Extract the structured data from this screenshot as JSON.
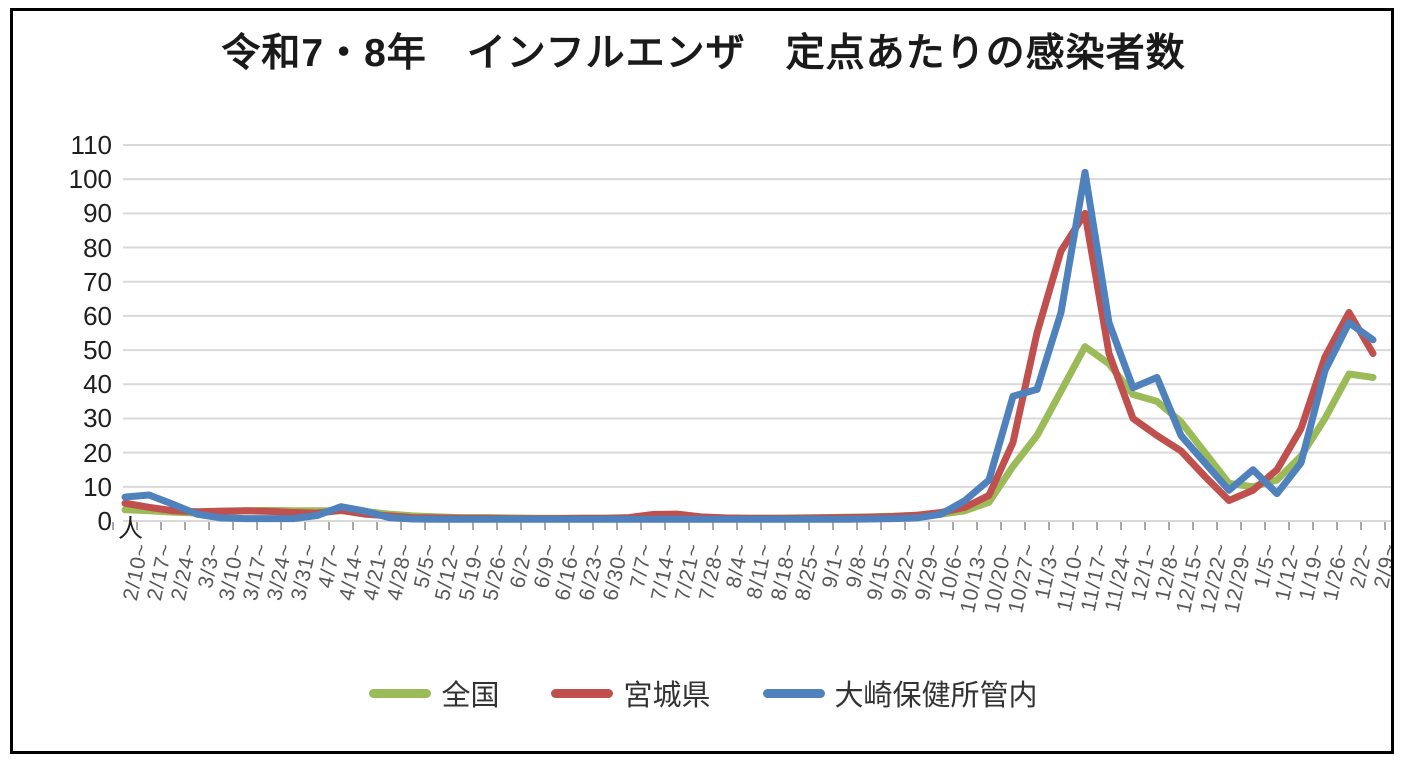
{
  "chart_data": {
    "type": "line",
    "title": "令和7・8年　インフルエンザ　定点あたりの感染者数",
    "y_axis": {
      "labels": [
        "110",
        "100",
        "90",
        "80",
        "70",
        "60",
        "50",
        "40",
        "30",
        "20",
        "10",
        "0"
      ],
      "unit": "人",
      "min": 0,
      "max": 110,
      "step": 10
    },
    "grid": true,
    "legend_position": "bottom",
    "categories": [
      "2/10~",
      "2/17~",
      "2/24~",
      "3/3~",
      "3/10~",
      "3/17~",
      "3/24~",
      "3/31~",
      "4/7~",
      "4/14~",
      "4/21~",
      "4/28~",
      "5/5~",
      "5/12~",
      "5/19~",
      "5/26~",
      "6/2~",
      "6/9~",
      "6/16~",
      "6/23~",
      "6/30~",
      "7/7~",
      "7/14~",
      "7/21~",
      "7/28~",
      "8/4~",
      "8/11~",
      "8/18~",
      "8/25~",
      "9/1~",
      "9/8~",
      "9/15~",
      "9/22~",
      "9/29~",
      "10/6~",
      "10/13~",
      "10/20~",
      "10/27~",
      "11/3~",
      "11/10~",
      "11/17~",
      "11/24~",
      "12/1~",
      "12/8~",
      "12/15~",
      "12/22~",
      "12/29~",
      "1/5~",
      "1/12~",
      "1/19~",
      "1/26~",
      "2/2~",
      "2/9~"
    ],
    "series": [
      {
        "id": "national",
        "name": "全国",
        "color": "#9BBB59",
        "values": [
          3.3,
          3.0,
          2.6,
          2.3,
          2.5,
          3.0,
          3.1,
          3.0,
          3.0,
          3.0,
          2.8,
          2.0,
          1.5,
          1.2,
          1.0,
          1.0,
          0.9,
          0.8,
          0.8,
          0.8,
          0.8,
          0.8,
          0.9,
          0.9,
          0.9,
          0.8,
          0.8,
          0.8,
          0.9,
          1.0,
          1.1,
          1.2,
          1.4,
          1.7,
          2.0,
          3.0,
          5.5,
          16,
          25,
          38,
          51,
          46,
          37,
          35,
          29,
          20,
          11,
          10,
          12,
          19,
          30,
          43,
          42
        ]
      },
      {
        "id": "miyagi",
        "name": "宮城県",
        "color": "#C0504D",
        "values": [
          5.2,
          4.0,
          3.0,
          2.7,
          2.9,
          3.0,
          2.8,
          2.5,
          2.3,
          3.1,
          2.0,
          1.5,
          1.0,
          0.9,
          0.8,
          0.8,
          0.7,
          0.7,
          0.7,
          0.8,
          0.8,
          1.0,
          1.9,
          2.0,
          1.2,
          0.9,
          0.8,
          0.8,
          0.8,
          0.9,
          1.0,
          1.1,
          1.3,
          1.7,
          2.5,
          4.0,
          7.5,
          23,
          55,
          79,
          90,
          49,
          30,
          25,
          20.5,
          13,
          6,
          9,
          15,
          27,
          48,
          61,
          49
        ]
      },
      {
        "id": "osaki",
        "name": "大崎保健所管内",
        "color": "#4F81BD",
        "values": [
          7.0,
          7.6,
          4.9,
          2.0,
          0.9,
          0.7,
          0.7,
          0.7,
          1.6,
          4.2,
          2.9,
          1.0,
          0.6,
          0.5,
          0.5,
          0.5,
          0.5,
          0.5,
          0.5,
          0.5,
          0.5,
          0.5,
          0.5,
          0.5,
          0.5,
          0.5,
          0.5,
          0.5,
          0.5,
          0.5,
          0.5,
          0.6,
          0.7,
          0.9,
          2.0,
          6.0,
          12,
          36.5,
          38.5,
          61,
          102,
          58,
          39,
          42,
          25,
          17,
          9,
          15,
          8,
          17,
          44,
          58,
          53
        ]
      }
    ],
    "colors": {
      "gridline": "#D9D9D9",
      "tick": "#8C8C8C",
      "x_label": "#595959",
      "y_label": "#1F1F1F",
      "title": "#1A1A1A"
    }
  }
}
